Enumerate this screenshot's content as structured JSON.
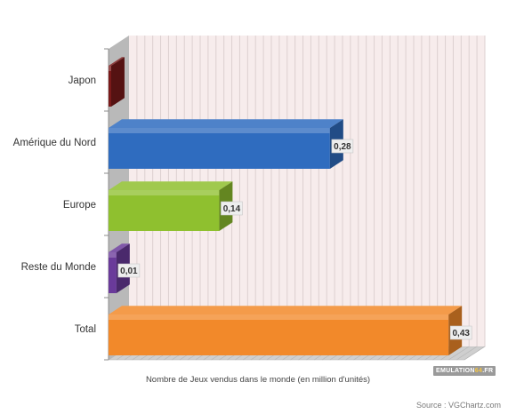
{
  "chart_data": {
    "type": "bar",
    "orientation": "horizontal",
    "three_d": true,
    "categories": [
      "Japon",
      "Amérique du Nord",
      "Europe",
      "Reste du Monde",
      "Total"
    ],
    "values": [
      0.0,
      0.28,
      0.14,
      0.01,
      0.43
    ],
    "value_labels": [
      "",
      "0,28",
      "0,14",
      "0,01",
      "0,43"
    ],
    "colors": [
      "#7a1a1a",
      "#2f6cbf",
      "#8fc02f",
      "#6a3a9a",
      "#f2892a"
    ],
    "title": "",
    "xlabel": "Nombre de Jeux vendus dans le monde (en million d'unités)",
    "ylabel": "",
    "xlim": [
      0,
      0.45
    ],
    "grid": true,
    "background": "#f7ecec",
    "grid_color": "#ddd0d0",
    "source": "Source : VGChartz.com"
  },
  "logo": {
    "text_a": "EMULATION",
    "text_b": "64",
    "text_c": ".FR"
  }
}
